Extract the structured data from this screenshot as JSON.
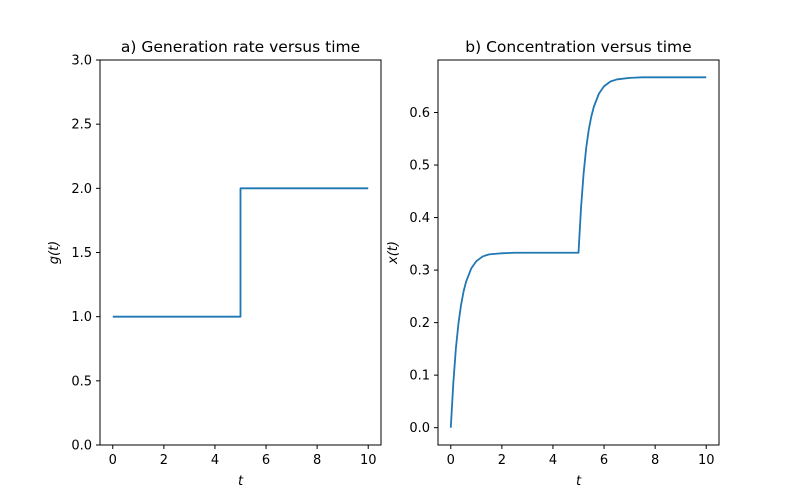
{
  "chart_data": [
    {
      "type": "line",
      "title": "a) Generation rate versus time",
      "xlabel": "t",
      "ylabel": "g(t)",
      "xlim": [
        -0.5,
        10.5
      ],
      "ylim": [
        0,
        3
      ],
      "xticks": [
        0,
        2,
        4,
        6,
        8,
        10
      ],
      "yticks": [
        0.0,
        0.5,
        1.0,
        1.5,
        2.0,
        2.5,
        3.0
      ],
      "xtick_labels": [
        "0",
        "2",
        "4",
        "6",
        "8",
        "10"
      ],
      "ytick_labels": [
        "0.0",
        "0.5",
        "1.0",
        "1.5",
        "2.0",
        "2.5",
        "3.0"
      ],
      "grid": false,
      "series": [
        {
          "color": "#1f77b4",
          "x": [
            0,
            5,
            5,
            10
          ],
          "y": [
            1,
            1,
            2,
            2
          ]
        }
      ]
    },
    {
      "type": "line",
      "title": "b) Concentration versus time",
      "xlabel": "t",
      "ylabel": "x(t)",
      "xlim": [
        -0.5,
        10.5
      ],
      "ylim": [
        -0.033,
        0.7
      ],
      "xticks": [
        0,
        2,
        4,
        6,
        8,
        10
      ],
      "yticks": [
        0.0,
        0.1,
        0.2,
        0.3,
        0.4,
        0.5,
        0.6
      ],
      "xtick_labels": [
        "0",
        "2",
        "4",
        "6",
        "8",
        "10"
      ],
      "ytick_labels": [
        "0.0",
        "0.1",
        "0.2",
        "0.3",
        "0.4",
        "0.5",
        "0.6"
      ],
      "grid": false,
      "series": [
        {
          "color": "#1f77b4",
          "x": [
            0,
            0.1,
            0.2,
            0.3,
            0.4,
            0.5,
            0.6,
            0.8,
            1.0,
            1.25,
            1.5,
            2.0,
            2.5,
            3.0,
            4.0,
            5.0,
            5.1,
            5.2,
            5.3,
            5.4,
            5.5,
            5.6,
            5.8,
            6.0,
            6.25,
            6.5,
            7.0,
            7.5,
            8.0,
            9.0,
            10.0
          ],
          "y": [
            0.0,
            0.085,
            0.151,
            0.198,
            0.233,
            0.259,
            0.278,
            0.303,
            0.317,
            0.326,
            0.33,
            0.332,
            0.333,
            0.333,
            0.333,
            0.333,
            0.419,
            0.484,
            0.532,
            0.567,
            0.592,
            0.611,
            0.636,
            0.65,
            0.659,
            0.663,
            0.666,
            0.667,
            0.667,
            0.667,
            0.667
          ]
        }
      ]
    }
  ]
}
